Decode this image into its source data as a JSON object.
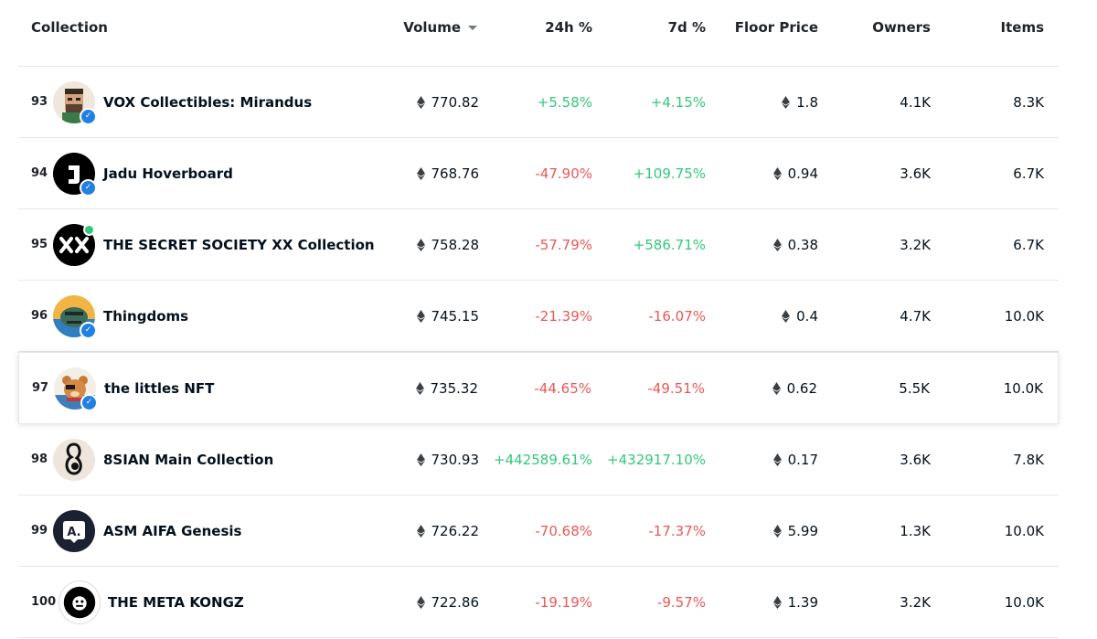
{
  "header": {
    "collection": "Collection",
    "volume": "Volume",
    "d24": "24h %",
    "d7": "7d %",
    "floor": "Floor Price",
    "owners": "Owners",
    "items": "Items"
  },
  "colors": {
    "positive": "#34c77b",
    "negative": "#eb5757",
    "verified": "#2081e2"
  },
  "rows": [
    {
      "rank": "93",
      "name": "VOX Collectibles: Mirandus",
      "volume": "770.82",
      "d24": "+5.58%",
      "d7": "+4.15%",
      "floor": "1.8",
      "owners": "4.1K",
      "items": "8.3K"
    },
    {
      "rank": "94",
      "name": "Jadu Hoverboard",
      "volume": "768.76",
      "d24": "-47.90%",
      "d7": "+109.75%",
      "floor": "0.94",
      "owners": "3.6K",
      "items": "6.7K"
    },
    {
      "rank": "95",
      "name": "THE SECRET SOCIETY XX Collection",
      "volume": "758.28",
      "d24": "-57.79%",
      "d7": "+586.71%",
      "floor": "0.38",
      "owners": "3.2K",
      "items": "6.7K"
    },
    {
      "rank": "96",
      "name": "Thingdoms",
      "volume": "745.15",
      "d24": "-21.39%",
      "d7": "-16.07%",
      "floor": "0.4",
      "owners": "4.7K",
      "items": "10.0K"
    },
    {
      "rank": "97",
      "name": "the littles NFT",
      "volume": "735.32",
      "d24": "-44.65%",
      "d7": "-49.51%",
      "floor": "0.62",
      "owners": "5.5K",
      "items": "10.0K"
    },
    {
      "rank": "98",
      "name": "8SIAN Main Collection",
      "volume": "730.93",
      "d24": "+442589.61%",
      "d7": "+432917.10%",
      "floor": "0.17",
      "owners": "3.6K",
      "items": "7.8K"
    },
    {
      "rank": "99",
      "name": "ASM AIFA Genesis",
      "volume": "726.22",
      "d24": "-70.68%",
      "d7": "-17.37%",
      "floor": "5.99",
      "owners": "1.3K",
      "items": "10.0K"
    },
    {
      "rank": "100",
      "name": "THE META KONGZ",
      "volume": "722.86",
      "d24": "-19.19%",
      "d7": "-9.57%",
      "floor": "1.39",
      "owners": "3.2K",
      "items": "10.0K"
    }
  ]
}
